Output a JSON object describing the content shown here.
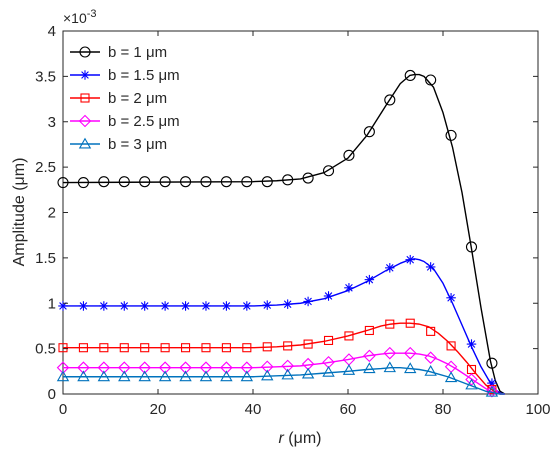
{
  "chart_data": {
    "type": "line",
    "title": "",
    "xlabel_italic": "r",
    "xlabel_unit": " (μm)",
    "ylabel": "Amplitude (μm)",
    "y_exponent_label": "×10",
    "y_exponent_power": "-3",
    "xlim": [
      0,
      100
    ],
    "ylim": [
      0,
      4
    ],
    "xticks": [
      0,
      20,
      40,
      60,
      80,
      100
    ],
    "yticks": [
      0,
      0.5,
      1,
      1.5,
      2,
      2.5,
      3,
      3.5,
      4
    ],
    "ytick_labels": [
      "0",
      "0.5",
      "1",
      "1.5",
      "2",
      "2.5",
      "3",
      "3.5",
      "4"
    ],
    "grid": false,
    "legend_position": "top-left",
    "marker_x": [
      0,
      4.3,
      8.6,
      12.9,
      17.2,
      21.5,
      25.8,
      30.1,
      34.4,
      38.7,
      43.0,
      47.3,
      51.6,
      55.9,
      60.2,
      64.5,
      68.8,
      73.1,
      77.4,
      81.7,
      86.0,
      90.3
    ],
    "series": [
      {
        "name": "b = 1 μm",
        "color": "#000000",
        "marker": "circle",
        "curve_x": [
          0,
          40,
          45,
          50,
          55,
          60,
          64,
          68,
          71,
          73,
          74,
          75,
          76,
          78,
          80,
          82,
          84,
          86,
          88,
          90,
          91,
          92,
          93
        ],
        "curve_y": [
          2.33,
          2.34,
          2.35,
          2.37,
          2.44,
          2.6,
          2.85,
          3.18,
          3.42,
          3.51,
          3.52,
          3.52,
          3.5,
          3.38,
          3.1,
          2.72,
          2.22,
          1.6,
          0.95,
          0.36,
          0.15,
          0.03,
          0.0
        ],
        "marker_y": [
          2.33,
          2.33,
          2.34,
          2.34,
          2.34,
          2.34,
          2.34,
          2.34,
          2.34,
          2.34,
          2.34,
          2.36,
          2.38,
          2.46,
          2.63,
          2.89,
          3.24,
          3.51,
          3.46,
          2.85,
          1.62,
          0.34
        ]
      },
      {
        "name": "b = 1.5 μm",
        "color": "#0000ff",
        "marker": "asterisk",
        "curve_x": [
          0,
          40,
          45,
          50,
          55,
          60,
          64,
          68,
          71,
          73,
          74,
          75,
          76,
          78,
          80,
          82,
          84,
          86,
          88,
          90,
          91,
          92,
          93
        ],
        "curve_y": [
          0.97,
          0.97,
          0.98,
          1.0,
          1.05,
          1.14,
          1.24,
          1.36,
          1.44,
          1.48,
          1.49,
          1.48,
          1.46,
          1.38,
          1.22,
          1.0,
          0.76,
          0.52,
          0.3,
          0.12,
          0.05,
          0.01,
          0.0
        ],
        "marker_y": [
          0.97,
          0.97,
          0.97,
          0.97,
          0.97,
          0.97,
          0.97,
          0.97,
          0.97,
          0.97,
          0.98,
          0.99,
          1.02,
          1.08,
          1.17,
          1.26,
          1.39,
          1.48,
          1.4,
          1.06,
          0.55,
          0.12
        ]
      },
      {
        "name": "b = 2 μm",
        "color": "#ff0000",
        "marker": "square",
        "curve_x": [
          0,
          40,
          45,
          50,
          55,
          60,
          64,
          67,
          69,
          71,
          73,
          75,
          77,
          79,
          81,
          83,
          85,
          87,
          89,
          90,
          91,
          92,
          93
        ],
        "curve_y": [
          0.51,
          0.51,
          0.52,
          0.54,
          0.58,
          0.64,
          0.7,
          0.75,
          0.77,
          0.78,
          0.78,
          0.77,
          0.74,
          0.67,
          0.58,
          0.47,
          0.35,
          0.22,
          0.1,
          0.06,
          0.02,
          0.0,
          0.0
        ],
        "marker_y": [
          0.51,
          0.51,
          0.51,
          0.51,
          0.51,
          0.51,
          0.51,
          0.51,
          0.51,
          0.51,
          0.52,
          0.53,
          0.55,
          0.59,
          0.64,
          0.7,
          0.77,
          0.78,
          0.69,
          0.53,
          0.27,
          0.05
        ]
      },
      {
        "name": "b = 2.5 μm",
        "color": "#ff00ff",
        "marker": "diamond",
        "curve_x": [
          0,
          40,
          45,
          50,
          55,
          60,
          64,
          67,
          69,
          71,
          73,
          75,
          77,
          79,
          81,
          83,
          85,
          87,
          89,
          90,
          91,
          92,
          93
        ],
        "curve_y": [
          0.29,
          0.29,
          0.3,
          0.31,
          0.34,
          0.38,
          0.42,
          0.44,
          0.45,
          0.45,
          0.45,
          0.44,
          0.42,
          0.38,
          0.33,
          0.27,
          0.2,
          0.13,
          0.06,
          0.03,
          0.01,
          0.0,
          0.0
        ],
        "marker_y": [
          0.29,
          0.29,
          0.29,
          0.29,
          0.29,
          0.29,
          0.29,
          0.29,
          0.29,
          0.29,
          0.3,
          0.31,
          0.33,
          0.35,
          0.38,
          0.42,
          0.45,
          0.45,
          0.4,
          0.3,
          0.16,
          0.03
        ]
      },
      {
        "name": "b = 3 μm",
        "color": "#0072bd",
        "marker": "triangle",
        "curve_x": [
          0,
          40,
          45,
          50,
          55,
          60,
          64,
          67,
          69,
          71,
          73,
          75,
          77,
          79,
          81,
          83,
          85,
          87,
          89,
          90,
          91,
          92,
          93
        ],
        "curve_y": [
          0.19,
          0.19,
          0.2,
          0.21,
          0.23,
          0.25,
          0.27,
          0.28,
          0.29,
          0.29,
          0.28,
          0.27,
          0.25,
          0.22,
          0.19,
          0.15,
          0.11,
          0.07,
          0.03,
          0.02,
          0.01,
          0.0,
          0.0
        ],
        "marker_y": [
          0.19,
          0.19,
          0.19,
          0.19,
          0.19,
          0.19,
          0.19,
          0.19,
          0.19,
          0.19,
          0.2,
          0.21,
          0.22,
          0.24,
          0.26,
          0.28,
          0.29,
          0.28,
          0.25,
          0.18,
          0.1,
          0.02
        ]
      }
    ]
  }
}
